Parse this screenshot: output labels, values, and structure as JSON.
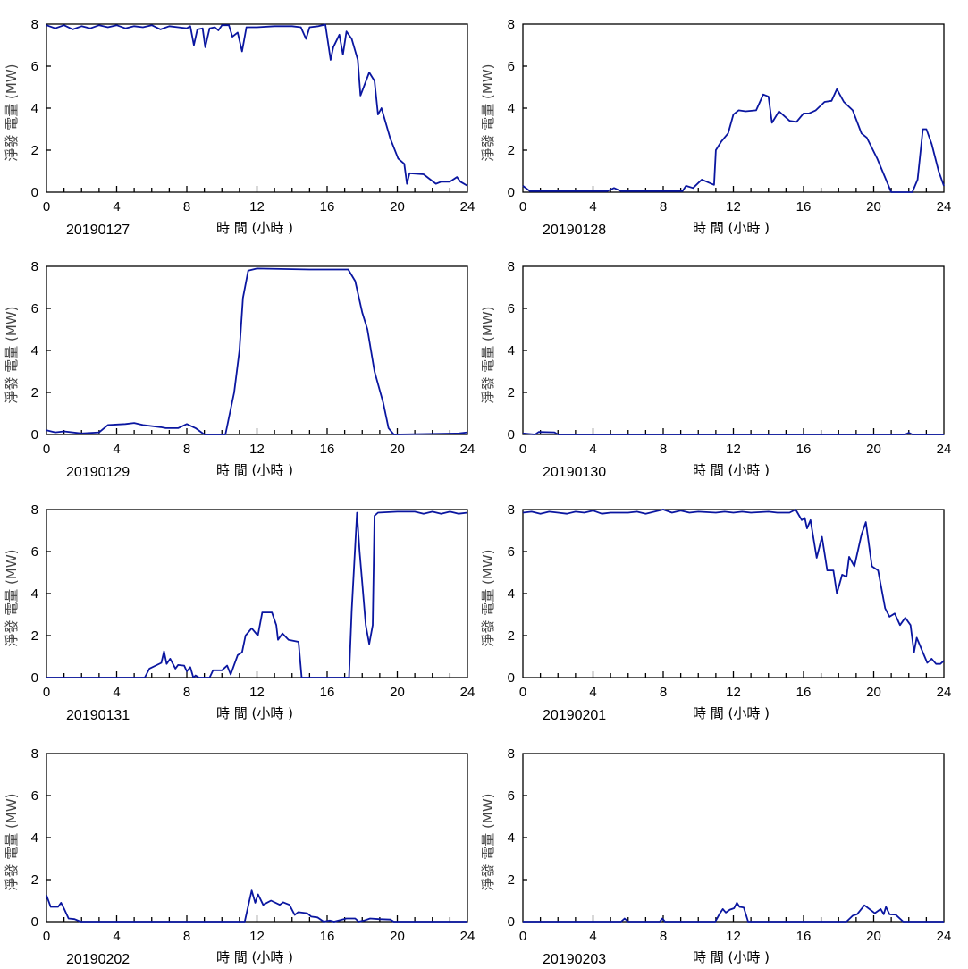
{
  "line_color": "#0a16a0",
  "chart_data": [
    {
      "type": "line",
      "title": "20190127",
      "xlabel": "時 間 (小時 )",
      "ylabel": "淨發 電量 (MW)",
      "xlim": [
        0,
        24
      ],
      "ylim": [
        0,
        8
      ],
      "xticks": [
        0,
        4,
        8,
        12,
        16,
        20,
        24
      ],
      "yticks": [
        0,
        2,
        4,
        6,
        8
      ],
      "points": [
        [
          0,
          7.95
        ],
        [
          0.5,
          7.8
        ],
        [
          1,
          7.95
        ],
        [
          1.5,
          7.75
        ],
        [
          2,
          7.9
        ],
        [
          2.5,
          7.8
        ],
        [
          3,
          7.95
        ],
        [
          3.5,
          7.85
        ],
        [
          4,
          7.95
        ],
        [
          4.5,
          7.8
        ],
        [
          5,
          7.9
        ],
        [
          5.5,
          7.85
        ],
        [
          6,
          7.95
        ],
        [
          6.5,
          7.75
        ],
        [
          7,
          7.9
        ],
        [
          7.5,
          7.85
        ],
        [
          8,
          7.8
        ],
        [
          8.2,
          7.9
        ],
        [
          8.4,
          7.0
        ],
        [
          8.6,
          7.75
        ],
        [
          8.9,
          7.8
        ],
        [
          9.05,
          6.9
        ],
        [
          9.3,
          7.8
        ],
        [
          9.6,
          7.85
        ],
        [
          9.8,
          7.7
        ],
        [
          10,
          7.95
        ],
        [
          10.4,
          7.95
        ],
        [
          10.6,
          7.4
        ],
        [
          10.9,
          7.6
        ],
        [
          11.15,
          6.7
        ],
        [
          11.4,
          7.85
        ],
        [
          12,
          7.85
        ],
        [
          13,
          7.9
        ],
        [
          14,
          7.9
        ],
        [
          14.5,
          7.85
        ],
        [
          14.8,
          7.3
        ],
        [
          15,
          7.85
        ],
        [
          15.5,
          7.9
        ],
        [
          15.9,
          7.98
        ],
        [
          16.2,
          6.3
        ],
        [
          16.35,
          6.9
        ],
        [
          16.7,
          7.5
        ],
        [
          16.9,
          6.55
        ],
        [
          17.1,
          7.65
        ],
        [
          17.4,
          7.3
        ],
        [
          17.75,
          6.3
        ],
        [
          17.9,
          4.6
        ],
        [
          18.4,
          5.7
        ],
        [
          18.7,
          5.3
        ],
        [
          18.9,
          3.7
        ],
        [
          19.1,
          4.0
        ],
        [
          19.6,
          2.55
        ],
        [
          20.05,
          1.6
        ],
        [
          20.4,
          1.35
        ],
        [
          20.55,
          0.4
        ],
        [
          20.7,
          0.9
        ],
        [
          21.5,
          0.85
        ],
        [
          22.2,
          0.4
        ],
        [
          22.5,
          0.5
        ],
        [
          23.0,
          0.5
        ],
        [
          23.4,
          0.72
        ],
        [
          23.6,
          0.5
        ],
        [
          24,
          0.3
        ]
      ]
    },
    {
      "type": "line",
      "title": "20190128",
      "xlabel": "時 間 (小時 )",
      "ylabel": "淨發 電量 (MW)",
      "xlim": [
        0,
        24
      ],
      "ylim": [
        0,
        8
      ],
      "xticks": [
        0,
        4,
        8,
        12,
        16,
        20,
        24
      ],
      "yticks": [
        0,
        2,
        4,
        6,
        8
      ],
      "points": [
        [
          0,
          0.3
        ],
        [
          0.4,
          0.05
        ],
        [
          4.8,
          0.05
        ],
        [
          5.2,
          0.2
        ],
        [
          5.6,
          0.05
        ],
        [
          9.1,
          0.05
        ],
        [
          9.3,
          0.3
        ],
        [
          9.7,
          0.2
        ],
        [
          10.2,
          0.6
        ],
        [
          10.9,
          0.35
        ],
        [
          11.0,
          2.0
        ],
        [
          11.3,
          2.4
        ],
        [
          11.7,
          2.8
        ],
        [
          12.0,
          3.7
        ],
        [
          12.3,
          3.9
        ],
        [
          12.7,
          3.85
        ],
        [
          13.3,
          3.9
        ],
        [
          13.7,
          4.65
        ],
        [
          14.0,
          4.55
        ],
        [
          14.2,
          3.3
        ],
        [
          14.6,
          3.85
        ],
        [
          15.2,
          3.4
        ],
        [
          15.6,
          3.35
        ],
        [
          16.0,
          3.75
        ],
        [
          16.3,
          3.75
        ],
        [
          16.7,
          3.9
        ],
        [
          17.2,
          4.3
        ],
        [
          17.6,
          4.35
        ],
        [
          17.9,
          4.9
        ],
        [
          18.3,
          4.3
        ],
        [
          18.8,
          3.9
        ],
        [
          19.3,
          2.8
        ],
        [
          19.6,
          2.6
        ],
        [
          20.2,
          1.6
        ],
        [
          20.8,
          0.4
        ],
        [
          21.0,
          0
        ],
        [
          22.2,
          0
        ],
        [
          22.5,
          0.6
        ],
        [
          22.8,
          3.0
        ],
        [
          23.0,
          3.0
        ],
        [
          23.3,
          2.3
        ],
        [
          23.7,
          1.0
        ],
        [
          24,
          0.3
        ]
      ]
    },
    {
      "type": "line",
      "title": "20190129",
      "xlabel": "時 間 (小時 )",
      "ylabel": "淨發 電量 (MW)",
      "xlim": [
        0,
        24
      ],
      "ylim": [
        0,
        8
      ],
      "xticks": [
        0,
        4,
        8,
        12,
        16,
        20,
        24
      ],
      "yticks": [
        0,
        2,
        4,
        6,
        8
      ],
      "points": [
        [
          0,
          0.2
        ],
        [
          0.5,
          0.1
        ],
        [
          1,
          0.15
        ],
        [
          2,
          0.05
        ],
        [
          3,
          0.1
        ],
        [
          3.5,
          0.45
        ],
        [
          4.5,
          0.5
        ],
        [
          5,
          0.55
        ],
        [
          5.5,
          0.45
        ],
        [
          6.5,
          0.35
        ],
        [
          6.8,
          0.3
        ],
        [
          7.5,
          0.3
        ],
        [
          8.0,
          0.5
        ],
        [
          8.5,
          0.3
        ],
        [
          9,
          0
        ],
        [
          10.2,
          0
        ],
        [
          10.4,
          0.8
        ],
        [
          10.7,
          2.0
        ],
        [
          11.0,
          4.0
        ],
        [
          11.2,
          6.5
        ],
        [
          11.5,
          7.8
        ],
        [
          12,
          7.9
        ],
        [
          15,
          7.85
        ],
        [
          17.2,
          7.85
        ],
        [
          17.6,
          7.3
        ],
        [
          18.0,
          5.8
        ],
        [
          18.3,
          5.0
        ],
        [
          18.7,
          3.0
        ],
        [
          19.2,
          1.5
        ],
        [
          19.5,
          0.3
        ],
        [
          19.8,
          0
        ],
        [
          23.5,
          0.05
        ],
        [
          24,
          0.1
        ]
      ]
    },
    {
      "type": "line",
      "title": "20190130",
      "xlabel": "時 間 (小時 )",
      "ylabel": "淨發 電量 (MW)",
      "xlim": [
        0,
        24
      ],
      "ylim": [
        0,
        8
      ],
      "xticks": [
        0,
        4,
        8,
        12,
        16,
        20,
        24
      ],
      "yticks": [
        0,
        2,
        4,
        6,
        8
      ],
      "points": [
        [
          0,
          0.05
        ],
        [
          0.7,
          0
        ],
        [
          0.9,
          0.12
        ],
        [
          1.8,
          0.1
        ],
        [
          2.0,
          0
        ],
        [
          21.8,
          0
        ],
        [
          22.0,
          0.08
        ],
        [
          22.2,
          0
        ],
        [
          24,
          0
        ]
      ]
    },
    {
      "type": "line",
      "title": "20190131",
      "xlabel": "時 間 (小時 )",
      "ylabel": "淨發 電量 (MW)",
      "xlim": [
        0,
        24
      ],
      "ylim": [
        0,
        8
      ],
      "xticks": [
        0,
        4,
        8,
        12,
        16,
        20,
        24
      ],
      "yticks": [
        0,
        2,
        4,
        6,
        8
      ],
      "points": [
        [
          0,
          0
        ],
        [
          5.6,
          0
        ],
        [
          5.87,
          0.43
        ],
        [
          6.55,
          0.7
        ],
        [
          6.7,
          1.25
        ],
        [
          6.85,
          0.65
        ],
        [
          7.05,
          0.9
        ],
        [
          7.35,
          0.43
        ],
        [
          7.5,
          0.6
        ],
        [
          7.85,
          0.57
        ],
        [
          8.0,
          0.3
        ],
        [
          8.2,
          0.5
        ],
        [
          8.37,
          0
        ],
        [
          8.5,
          0.1
        ],
        [
          8.7,
          0
        ],
        [
          9.3,
          0
        ],
        [
          9.5,
          0.35
        ],
        [
          10.0,
          0.35
        ],
        [
          10.3,
          0.57
        ],
        [
          10.5,
          0.15
        ],
        [
          10.9,
          1.07
        ],
        [
          11.15,
          1.2
        ],
        [
          11.35,
          2.0
        ],
        [
          11.7,
          2.35
        ],
        [
          12.05,
          2.0
        ],
        [
          12.3,
          3.1
        ],
        [
          12.85,
          3.1
        ],
        [
          13.1,
          2.5
        ],
        [
          13.2,
          1.8
        ],
        [
          13.45,
          2.1
        ],
        [
          13.8,
          1.8
        ],
        [
          14.37,
          1.7
        ],
        [
          14.55,
          0
        ],
        [
          17.25,
          0
        ],
        [
          17.4,
          3.2
        ],
        [
          17.7,
          7.85
        ],
        [
          17.85,
          6.0
        ],
        [
          18.0,
          4.5
        ],
        [
          18.2,
          2.5
        ],
        [
          18.4,
          1.6
        ],
        [
          18.6,
          2.5
        ],
        [
          18.7,
          7.7
        ],
        [
          18.9,
          7.85
        ],
        [
          20,
          7.9
        ],
        [
          21,
          7.9
        ],
        [
          21.5,
          7.8
        ],
        [
          22,
          7.9
        ],
        [
          22.5,
          7.8
        ],
        [
          23,
          7.9
        ],
        [
          23.5,
          7.8
        ],
        [
          24,
          7.85
        ]
      ]
    },
    {
      "type": "line",
      "title": "20190201",
      "xlabel": "時 間 (小時 )",
      "ylabel": "淨發 電量 (MW)",
      "xlim": [
        0,
        24
      ],
      "ylim": [
        0,
        8
      ],
      "xticks": [
        0,
        4,
        8,
        12,
        16,
        20,
        24
      ],
      "yticks": [
        0,
        2,
        4,
        6,
        8
      ],
      "points": [
        [
          0,
          7.85
        ],
        [
          0.5,
          7.9
        ],
        [
          1,
          7.8
        ],
        [
          1.5,
          7.9
        ],
        [
          2,
          7.85
        ],
        [
          2.5,
          7.8
        ],
        [
          3,
          7.9
        ],
        [
          3.5,
          7.85
        ],
        [
          4,
          7.95
        ],
        [
          4.5,
          7.8
        ],
        [
          5,
          7.85
        ],
        [
          6,
          7.85
        ],
        [
          6.5,
          7.9
        ],
        [
          7,
          7.8
        ],
        [
          7.5,
          7.9
        ],
        [
          8,
          8.0
        ],
        [
          8.5,
          7.85
        ],
        [
          9,
          7.95
        ],
        [
          9.5,
          7.85
        ],
        [
          10,
          7.9
        ],
        [
          11,
          7.85
        ],
        [
          11.5,
          7.9
        ],
        [
          12,
          7.85
        ],
        [
          12.5,
          7.9
        ],
        [
          13,
          7.85
        ],
        [
          14,
          7.9
        ],
        [
          14.5,
          7.85
        ],
        [
          15.2,
          7.85
        ],
        [
          15.55,
          8.0
        ],
        [
          15.9,
          7.5
        ],
        [
          16.07,
          7.6
        ],
        [
          16.2,
          7.1
        ],
        [
          16.4,
          7.5
        ],
        [
          16.75,
          5.7
        ],
        [
          17.05,
          6.7
        ],
        [
          17.35,
          5.1
        ],
        [
          17.7,
          5.1
        ],
        [
          17.9,
          4.0
        ],
        [
          18.2,
          4.9
        ],
        [
          18.45,
          4.8
        ],
        [
          18.6,
          5.75
        ],
        [
          18.9,
          5.3
        ],
        [
          19.3,
          6.8
        ],
        [
          19.55,
          7.4
        ],
        [
          19.9,
          5.3
        ],
        [
          20.25,
          5.1
        ],
        [
          20.65,
          3.3
        ],
        [
          20.9,
          2.9
        ],
        [
          21.2,
          3.05
        ],
        [
          21.5,
          2.5
        ],
        [
          21.8,
          2.85
        ],
        [
          22.1,
          2.5
        ],
        [
          22.3,
          1.2
        ],
        [
          22.45,
          1.9
        ],
        [
          23.05,
          0.7
        ],
        [
          23.3,
          0.9
        ],
        [
          23.55,
          0.65
        ],
        [
          23.8,
          0.65
        ],
        [
          24,
          0.8
        ]
      ]
    },
    {
      "type": "line",
      "title": "20190202",
      "xlabel": "時 間 (小時 )",
      "ylabel": "淨發 電量 (MW)",
      "xlim": [
        0,
        24
      ],
      "ylim": [
        0,
        8
      ],
      "xticks": [
        0,
        4,
        8,
        12,
        16,
        20,
        24
      ],
      "yticks": [
        0,
        2,
        4,
        6,
        8
      ],
      "points": [
        [
          0,
          1.25
        ],
        [
          0.24,
          0.7
        ],
        [
          0.66,
          0.7
        ],
        [
          0.83,
          0.9
        ],
        [
          1.0,
          0.62
        ],
        [
          1.26,
          0.15
        ],
        [
          1.6,
          0.12
        ],
        [
          1.94,
          0
        ],
        [
          11.3,
          0
        ],
        [
          11.5,
          0.75
        ],
        [
          11.7,
          1.48
        ],
        [
          11.9,
          0.9
        ],
        [
          12.06,
          1.3
        ],
        [
          12.35,
          0.8
        ],
        [
          12.8,
          1.0
        ],
        [
          13.3,
          0.8
        ],
        [
          13.5,
          0.92
        ],
        [
          13.85,
          0.8
        ],
        [
          14.15,
          0.32
        ],
        [
          14.35,
          0.45
        ],
        [
          14.86,
          0.4
        ],
        [
          15.1,
          0.24
        ],
        [
          15.45,
          0.2
        ],
        [
          15.8,
          0
        ],
        [
          16.15,
          0.05
        ],
        [
          16.4,
          0
        ],
        [
          17.1,
          0.15
        ],
        [
          17.6,
          0.15
        ],
        [
          17.8,
          0
        ],
        [
          18.1,
          0.05
        ],
        [
          18.45,
          0.15
        ],
        [
          18.95,
          0.12
        ],
        [
          19.6,
          0.1
        ],
        [
          19.8,
          0
        ],
        [
          24,
          0
        ]
      ]
    },
    {
      "type": "line",
      "title": "20190203",
      "xlabel": "時 間 (小時 )",
      "ylabel": "淨發 電量 (MW)",
      "xlim": [
        0,
        24
      ],
      "ylim": [
        0,
        8
      ],
      "xticks": [
        0,
        4,
        8,
        12,
        16,
        20,
        24
      ],
      "yticks": [
        0,
        2,
        4,
        6,
        8
      ],
      "points": [
        [
          0,
          0
        ],
        [
          5.6,
          0
        ],
        [
          5.8,
          0.15
        ],
        [
          6.0,
          0
        ],
        [
          7.8,
          0
        ],
        [
          7.95,
          0.15
        ],
        [
          8.1,
          0
        ],
        [
          10.97,
          0
        ],
        [
          11.2,
          0.35
        ],
        [
          11.4,
          0.6
        ],
        [
          11.57,
          0.43
        ],
        [
          11.8,
          0.57
        ],
        [
          12.04,
          0.64
        ],
        [
          12.2,
          0.9
        ],
        [
          12.35,
          0.7
        ],
        [
          12.59,
          0.67
        ],
        [
          12.84,
          0
        ],
        [
          18.45,
          0
        ],
        [
          18.8,
          0.28
        ],
        [
          19.05,
          0.35
        ],
        [
          19.47,
          0.78
        ],
        [
          19.8,
          0.57
        ],
        [
          20.06,
          0.4
        ],
        [
          20.4,
          0.6
        ],
        [
          20.57,
          0.35
        ],
        [
          20.7,
          0.7
        ],
        [
          20.9,
          0.35
        ],
        [
          21.25,
          0.33
        ],
        [
          21.68,
          0
        ],
        [
          24,
          0
        ]
      ]
    }
  ]
}
